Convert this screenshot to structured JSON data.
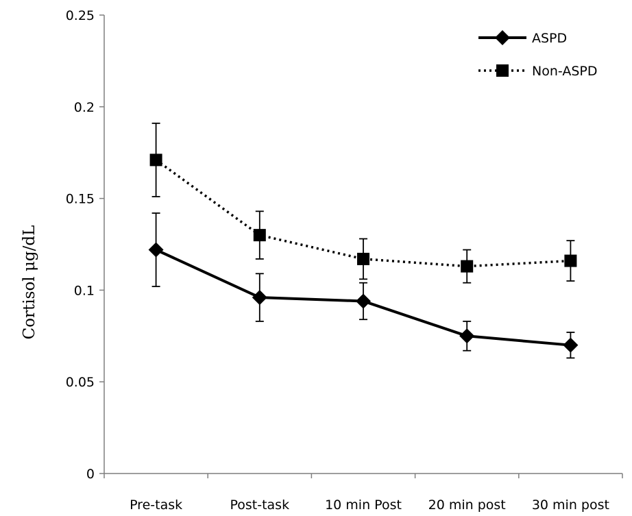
{
  "chart_data": {
    "type": "line",
    "title": "",
    "xlabel": "",
    "ylabel": "Cortisol μg/dL",
    "categories": [
      "Pre-task",
      "Post-task",
      "10 min Post",
      "20 min post",
      "30 min post"
    ],
    "yticks": [
      "0",
      "0.05",
      "0.1",
      "0.15",
      "0.2",
      "0.25"
    ],
    "ylim": [
      0,
      0.25
    ],
    "grid": false,
    "legend_position": "top-right",
    "series": [
      {
        "name": "ASPD",
        "line_style": "solid",
        "marker": "diamond",
        "color": "#000000",
        "values": [
          0.122,
          0.096,
          0.094,
          0.075,
          0.07
        ],
        "error": [
          0.02,
          0.013,
          0.01,
          0.008,
          0.007
        ]
      },
      {
        "name": "Non-ASPD",
        "line_style": "dotted",
        "marker": "square",
        "color": "#000000",
        "values": [
          0.171,
          0.13,
          0.117,
          0.113,
          0.116
        ],
        "error": [
          0.02,
          0.013,
          0.011,
          0.009,
          0.011
        ]
      }
    ]
  }
}
